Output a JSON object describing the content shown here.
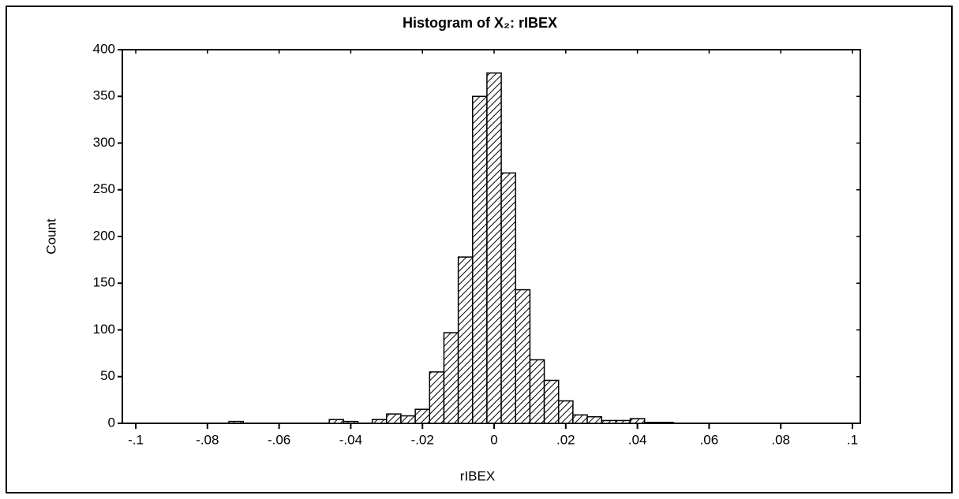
{
  "chart_data": {
    "type": "histogram",
    "title": "Histogram of X₂: rIBEX",
    "x_label": "rIBEX",
    "y_label": "Count",
    "bins": [
      -0.074,
      -0.07,
      -0.066,
      -0.062,
      -0.058,
      -0.054,
      -0.05,
      -0.046,
      -0.042,
      -0.038,
      -0.034,
      -0.03,
      -0.026,
      -0.022,
      -0.018,
      -0.014,
      -0.01,
      -0.006,
      -0.002,
      0.002,
      0.006,
      0.01,
      0.014,
      0.018,
      0.022,
      0.026,
      0.03,
      0.034,
      0.038,
      0.042,
      0.046,
      0.05
    ],
    "values": [
      2,
      0,
      0,
      0,
      0,
      0,
      0,
      4,
      2,
      0,
      4,
      10,
      8,
      15,
      55,
      97,
      178,
      350,
      375,
      268,
      143,
      68,
      46,
      24,
      9,
      7,
      3,
      3,
      5,
      1,
      1
    ],
    "color": "#000000",
    "xlim": [
      -0.1,
      0.1
    ],
    "xticks": [
      {
        "value": -0.1,
        "label": "-.1"
      },
      {
        "value": -0.08,
        "label": "-.08"
      },
      {
        "value": -0.06,
        "label": "-.06"
      },
      {
        "value": -0.04,
        "label": "-.04"
      },
      {
        "value": -0.02,
        "label": "-.02"
      },
      0,
      {
        "value": 0.02,
        "label": ".02"
      },
      {
        "value": 0.04,
        "label": ".04"
      },
      {
        "value": 0.06,
        "label": ".06"
      },
      {
        "value": 0.08,
        "label": ".08"
      },
      {
        "value": 0.1,
        "label": ".1"
      }
    ],
    "ylim": [
      0,
      400
    ],
    "yticks": [
      0,
      50,
      100,
      150,
      200,
      250,
      300,
      350,
      400
    ],
    "hatch": true
  }
}
